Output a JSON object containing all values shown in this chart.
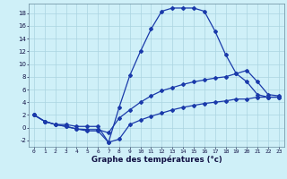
{
  "title": "Graphe des températures (°c)",
  "bg_color": "#cff0f8",
  "line_color": "#1a3aaa",
  "xlim": [
    -0.5,
    23.5
  ],
  "ylim": [
    -3,
    19.5
  ],
  "xticks": [
    0,
    1,
    2,
    3,
    4,
    5,
    6,
    7,
    8,
    9,
    10,
    11,
    12,
    13,
    14,
    15,
    16,
    17,
    18,
    19,
    20,
    21,
    22,
    23
  ],
  "yticks": [
    -2,
    0,
    2,
    4,
    6,
    8,
    10,
    12,
    14,
    16,
    18
  ],
  "line1_y": [
    2.0,
    1.0,
    0.5,
    0.5,
    0.2,
    0.2,
    0.2,
    -2.3,
    3.2,
    8.2,
    12.0,
    15.5,
    18.3,
    18.8,
    18.8,
    18.8,
    18.3,
    15.2,
    11.5,
    8.5,
    7.2,
    5.2,
    4.8,
    4.8
  ],
  "line2_y": [
    2.0,
    1.0,
    0.5,
    0.2,
    -0.2,
    -0.3,
    -0.3,
    -0.8,
    1.5,
    2.8,
    4.0,
    5.0,
    5.8,
    6.3,
    6.8,
    7.2,
    7.5,
    7.8,
    8.0,
    8.5,
    9.0,
    7.2,
    5.2,
    5.0
  ],
  "line3_y": [
    2.0,
    1.0,
    0.5,
    0.2,
    -0.2,
    -0.5,
    -0.5,
    -2.3,
    -1.8,
    0.5,
    1.2,
    1.8,
    2.3,
    2.8,
    3.2,
    3.5,
    3.8,
    4.0,
    4.2,
    4.5,
    4.5,
    4.8,
    4.8,
    4.8
  ]
}
